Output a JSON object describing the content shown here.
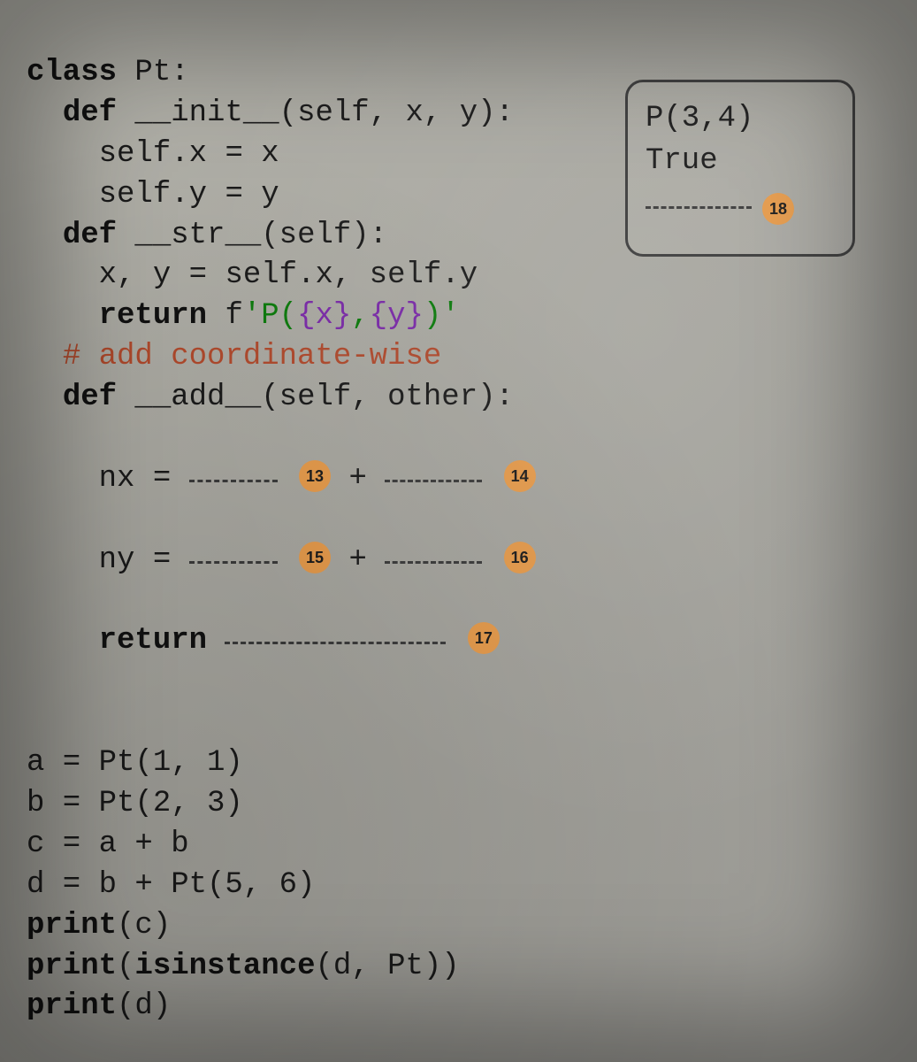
{
  "code": {
    "l1": "class",
    "l1b": " Pt:",
    "l2": "def",
    "l2b": " __init__(self, x, y):",
    "l3": "self.x = x",
    "l4": "self.y = y",
    "l5": "def",
    "l5b": " __str__(self):",
    "l6": "x, y = self.x, self.y",
    "l7": "return",
    "l7b": " f",
    "l7c": "'P(",
    "l7d": "{x}",
    "l7e": ",",
    "l7f": "{y}",
    "l7g": ")'",
    "l8": "# add coordinate-wise",
    "l9": "def",
    "l9b": " __add__(self, other):",
    "nx": "nx = ",
    "plus": " + ",
    "ny": "ny = ",
    "ret": "return",
    "a": "a = Pt(1, 1)",
    "b": "b = Pt(2, 3)",
    "c": "c = a + b",
    "d": "d = b + Pt(5, 6)",
    "pc": "print",
    "pc2": "(c)",
    "pi": "print",
    "pi2": "(",
    "pi3": "isinstance",
    "pi4": "(d, Pt))",
    "pd": "print",
    "pd2": "(d)"
  },
  "badges": {
    "b13": "13",
    "b14": "14",
    "b15": "15",
    "b16": "16",
    "b17": "17",
    "b18": "18"
  },
  "output": {
    "line1": "P(3,4)",
    "line2": "True"
  },
  "colors": {
    "badge_bg": "#e69a4a",
    "keyword": "#111111",
    "string_green": "#0b7a0b",
    "string_purple": "#7a2aa8",
    "comment": "#b04a2d",
    "page_bg": "#a8a7a0"
  },
  "font": {
    "family": "Courier New, monospace",
    "size_pt": 26
  }
}
